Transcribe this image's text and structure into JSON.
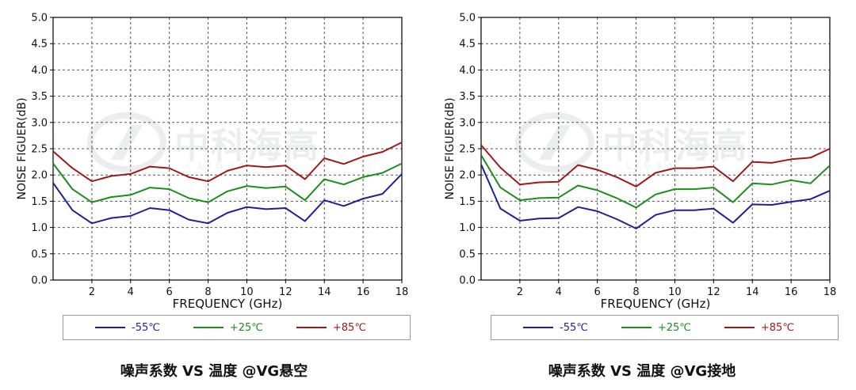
{
  "colors": {
    "low": "#1f1f9a",
    "mid": "#1a8f1a",
    "high": "#a01818"
  },
  "legend_labels": [
    "-55℃",
    "+25℃",
    "+85℃"
  ],
  "watermark": {
    "text": "中科海高",
    "sub": "LiGao"
  },
  "chart_data": [
    {
      "type": "line",
      "title": "噪声系数 VS 温度 @VG悬空",
      "xlabel": "FREQUENCY (GHz)",
      "ylabel": "NOISE FIGUER(dB)",
      "xlim": [
        0,
        18
      ],
      "ylim": [
        0,
        5
      ],
      "xticks": [
        "2",
        "4",
        "6",
        "8",
        "10",
        "12",
        "14",
        "16",
        "18"
      ],
      "yticks": [
        "0.0",
        "0.5",
        "1.0",
        "1.5",
        "2.0",
        "2.5",
        "3.0",
        "3.5",
        "4.0",
        "4.5",
        "5.0"
      ],
      "grid": true,
      "legend": "bottom",
      "x": [
        0,
        1,
        2,
        3,
        4,
        5,
        6,
        7,
        8,
        9,
        10,
        11,
        12,
        13,
        14,
        15,
        16,
        17,
        18
      ],
      "series": [
        {
          "name": "-55℃",
          "values": [
            1.85,
            1.33,
            1.08,
            1.18,
            1.22,
            1.37,
            1.33,
            1.15,
            1.08,
            1.28,
            1.39,
            1.35,
            1.37,
            1.12,
            1.52,
            1.41,
            1.55,
            1.64,
            2.02
          ]
        },
        {
          "name": "+25℃",
          "values": [
            2.22,
            1.73,
            1.48,
            1.58,
            1.62,
            1.76,
            1.73,
            1.56,
            1.48,
            1.69,
            1.79,
            1.75,
            1.78,
            1.52,
            1.92,
            1.82,
            1.96,
            2.04,
            2.22
          ]
        },
        {
          "name": "+85℃",
          "values": [
            2.45,
            2.13,
            1.88,
            1.98,
            2.02,
            2.16,
            2.13,
            1.96,
            1.88,
            2.08,
            2.18,
            2.15,
            2.18,
            1.92,
            2.32,
            2.21,
            2.35,
            2.44,
            2.62
          ]
        }
      ]
    },
    {
      "type": "line",
      "title": "噪声系数 VS 温度 @VG接地",
      "xlabel": "FREQUENCY (GHz)",
      "ylabel": "NOISE FIGUER(dB)",
      "xlim": [
        0,
        18
      ],
      "ylim": [
        0,
        5
      ],
      "xticks": [
        "2",
        "4",
        "6",
        "8",
        "10",
        "12",
        "14",
        "16",
        "18"
      ],
      "yticks": [
        "0.0",
        "0.5",
        "1.0",
        "1.5",
        "2.0",
        "2.5",
        "3.0",
        "3.5",
        "4.0",
        "4.5",
        "5.0"
      ],
      "grid": true,
      "legend": "bottom",
      "x": [
        0,
        1,
        2,
        3,
        4,
        5,
        6,
        7,
        8,
        9,
        10,
        11,
        12,
        13,
        14,
        15,
        16,
        17,
        18
      ],
      "series": [
        {
          "name": "-55℃",
          "values": [
            2.2,
            1.36,
            1.13,
            1.17,
            1.18,
            1.39,
            1.31,
            1.16,
            0.98,
            1.24,
            1.33,
            1.33,
            1.36,
            1.09,
            1.44,
            1.43,
            1.49,
            1.54,
            1.7
          ]
        },
        {
          "name": "+25℃",
          "values": [
            2.38,
            1.76,
            1.52,
            1.56,
            1.57,
            1.8,
            1.71,
            1.56,
            1.38,
            1.63,
            1.73,
            1.73,
            1.76,
            1.48,
            1.84,
            1.82,
            1.9,
            1.84,
            2.18
          ]
        },
        {
          "name": "+85℃",
          "values": [
            2.57,
            2.14,
            1.82,
            1.86,
            1.87,
            2.19,
            2.1,
            1.96,
            1.78,
            2.04,
            2.13,
            2.13,
            2.16,
            1.88,
            2.25,
            2.23,
            2.3,
            2.33,
            2.5
          ]
        }
      ]
    }
  ]
}
